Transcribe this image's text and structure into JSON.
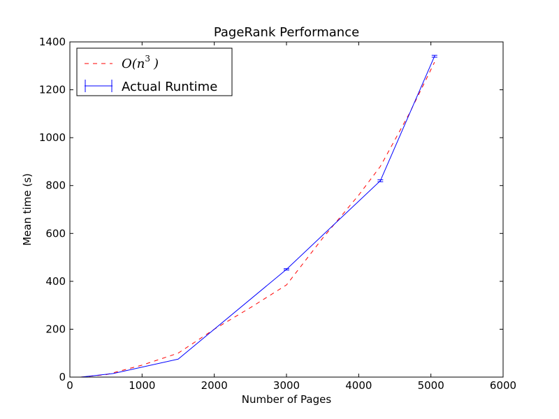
{
  "chart_data": {
    "type": "line",
    "title": "PageRank Performance",
    "xlabel": "Number of Pages",
    "ylabel": "Mean time (s)",
    "xlim": [
      0,
      6000
    ],
    "ylim": [
      0,
      1400
    ],
    "x_ticks": [
      "0",
      "1000",
      "2000",
      "3000",
      "4000",
      "5000",
      "6000"
    ],
    "y_ticks": [
      "0",
      "200",
      "400",
      "600",
      "800",
      "1000",
      "1200",
      "1400"
    ],
    "grid": false,
    "legend_position": "top-left",
    "series": [
      {
        "name": "O(n^3)",
        "legend_prefix": "O(n",
        "legend_sup": "3",
        "legend_suffix": ")",
        "style": "dashed",
        "color": "#ff0000",
        "x": [
          150,
          500,
          1000,
          1500,
          2000,
          2500,
          3000,
          3500,
          4000,
          4300,
          4700,
          5050
        ],
        "y": [
          0,
          10,
          50,
          100,
          200,
          290,
          385,
          580,
          760,
          880,
          1100,
          1315
        ]
      },
      {
        "name": "Actual Runtime",
        "style": "solid",
        "error_bars": true,
        "color": "#0000ff",
        "x": [
          150,
          600,
          1500,
          3000,
          4300,
          5050
        ],
        "y": [
          0,
          15,
          75,
          450,
          820,
          1340
        ],
        "yerr": [
          0,
          0,
          0,
          3,
          4,
          4
        ]
      }
    ]
  }
}
